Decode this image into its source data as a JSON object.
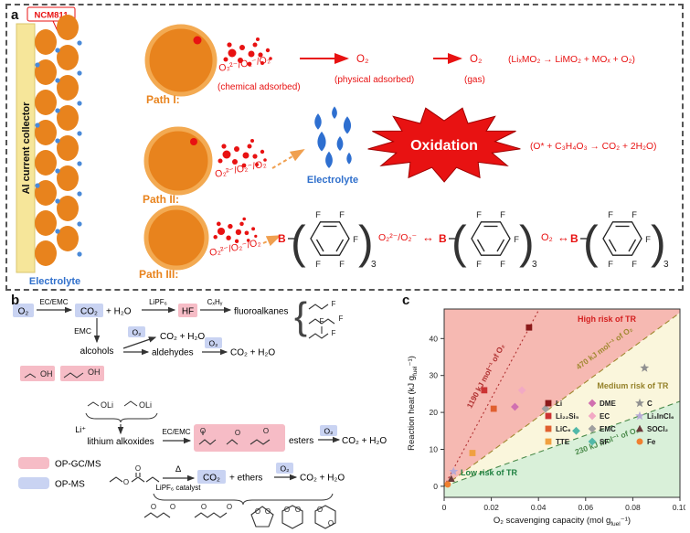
{
  "figure": {
    "panel_a_label": "a",
    "panel_b_label": "b",
    "panel_c_label": "c"
  },
  "panel_a": {
    "ncm_label": "NCM811",
    "collector_label": "Al current collector",
    "electrolyte_label": "Electrolyte",
    "path1": {
      "label": "Path I:",
      "species": "O₂²⁻/O₂⁻/O₂",
      "state1": "(chemical adsorbed)",
      "o2_mid": "O₂",
      "state2": "(physical adsorbed)",
      "o2_gas": "O₂",
      "state3": "(gas)",
      "reaction": "(LiₓMO₂ → LiMO₂ + MOₓ + O₂)"
    },
    "path2": {
      "label": "Path II:",
      "species": "O₂²⁻/O₂⁻/O₂",
      "electrolyte_label": "Electrolyte",
      "burst_label": "Oxidation",
      "reaction": "(O* + C₃H₄O₃ → CO₂ + 2H₂O)"
    },
    "path3": {
      "label": "Path III:",
      "species": "O₂²⁻/O₂⁻/O₂",
      "species2": "O₂²⁻/O₂⁻",
      "equil1": "↔",
      "o2": "O₂",
      "equil2": "↔"
    },
    "structure": {
      "boron": "B",
      "open": "(",
      "close": ")",
      "fluorine": "F",
      "subscript": "3"
    }
  },
  "panel_b": {
    "row1": {
      "o2": "O₂",
      "arrow1_label": "EC/EMC",
      "co2": "CO₂",
      "plus_h2o": "+ H₂O",
      "arrow2_label": "LiPF₆",
      "hf": "HF",
      "arrow3_label": "CₓHᵧ",
      "fluoroalkanes": "fluoroalkanes"
    },
    "row2": {
      "emc": "EMC",
      "alcohols": "alcohols",
      "o2_a": "O₂",
      "co2_h2o_a": "CO₂ + H₂O",
      "aldehydes": "aldehydes",
      "o2_b": "O₂",
      "co2_h2o_b": "CO₂ + H₂O"
    },
    "row3": {
      "oh": "OH",
      "oli": "OLi",
      "li_ion": "Li⁺",
      "alkoxides": "lithium alkoxides",
      "arrow_label": "EC/EMC",
      "esters": "esters",
      "o2": "O₂",
      "co2_h2o": "CO₂ + H₂O"
    },
    "row4": {
      "delta": "Δ",
      "catalyst": "LiPF₆ catalyst",
      "co2": "CO₂",
      "ethers": "+ ethers",
      "o2": "O₂",
      "co2_h2o": "CO₂ + H₂O"
    },
    "legend": {
      "pink": "OP-GC/MS",
      "blue": "OP-MS"
    },
    "atoms": {
      "O": "O",
      "F": "F"
    },
    "syms": {
      "brace": "{"
    }
  },
  "panel_c": {
    "chart_data": {
      "type": "scatter",
      "xlabel": {
        "main": "O₂ scavenging capacity (mol g",
        "sub": "fuel",
        "end": "⁻¹)"
      },
      "ylabel": {
        "main": "Reaction heat (kJ g",
        "sub": "fuel",
        "end": "⁻¹)"
      },
      "xlim": [
        0,
        0.1
      ],
      "ylim": [
        -3,
        48
      ],
      "xticks": [
        0,
        0.02,
        0.04,
        0.06,
        0.08,
        0.1
      ],
      "yticks": [
        0,
        10,
        20,
        30,
        40
      ],
      "boundary_lines": [
        {
          "slope": 1190,
          "label": "1190 kJ mol⁻¹ of O₂",
          "style": "dotted",
          "color": "#b03030",
          "label_x": 0.0115,
          "label_y": 21,
          "label_rot": -62
        },
        {
          "slope": 470,
          "label": "470 kJ mol⁻¹ of O₂",
          "style": "dashed",
          "color": "#a08830",
          "label_x": 0.057,
          "label_y": 31.5,
          "label_rot": -36
        },
        {
          "slope": 230,
          "label": "230 kJ mol⁻¹ of O₂",
          "style": "dashed",
          "color": "#4a8a4a",
          "label_x": 0.056,
          "label_y": 8.5,
          "label_rot": -20
        }
      ],
      "regions": [
        {
          "name": "high",
          "label": "High risk of TR",
          "fill": "#f6b9b2",
          "label_color": "#d42020",
          "label_x": 0.069,
          "label_y": 44.5
        },
        {
          "name": "medium",
          "label": "Medium risk of TR",
          "fill": "#faf6dc",
          "label_color": "#95822a",
          "label_x": 0.08,
          "label_y": 26.5
        },
        {
          "name": "low",
          "label": "Low risk of TR",
          "fill": "#d9f0d9",
          "label_color": "#1f8040",
          "label_x": 0.019,
          "label_y": 3
        }
      ],
      "series": [
        {
          "name": "Li",
          "x": 0.036,
          "y": 43,
          "symbol": "square",
          "color": "#8b1a1a"
        },
        {
          "name": "Li₂₂Si₅",
          "x": 0.017,
          "y": 26,
          "symbol": "square",
          "color": "#cc3333"
        },
        {
          "name": "LiC₆",
          "x": 0.021,
          "y": 21,
          "symbol": "square",
          "color": "#e06030"
        },
        {
          "name": "TTE",
          "x": 0.012,
          "y": 9,
          "symbol": "square",
          "color": "#f0a040"
        },
        {
          "name": "DME",
          "x": 0.03,
          "y": 21.5,
          "symbol": "diamond",
          "color": "#d070b0"
        },
        {
          "name": "EC",
          "x": 0.033,
          "y": 26,
          "symbol": "diamond",
          "color": "#f2a9c4"
        },
        {
          "name": "EMC",
          "x": 0.043,
          "y": 21,
          "symbol": "diamond",
          "color": "#a0a0a0"
        },
        {
          "name": "SF",
          "x": 0.056,
          "y": 15,
          "symbol": "diamond",
          "color": "#52b8a8"
        },
        {
          "name": "C",
          "x": 0.085,
          "y": 32,
          "symbol": "star",
          "color": "#909090"
        },
        {
          "name": "Li₃InCl₆",
          "x": 0.004,
          "y": 4,
          "symbol": "star",
          "color": "#b7a9d6"
        },
        {
          "name": "SOCl₂",
          "x": 0.003,
          "y": 2,
          "symbol": "triangle",
          "color": "#6a3a3a"
        },
        {
          "name": "Fe",
          "x": 0.0015,
          "y": 0.5,
          "symbol": "circle",
          "color": "#f08030"
        }
      ]
    }
  }
}
